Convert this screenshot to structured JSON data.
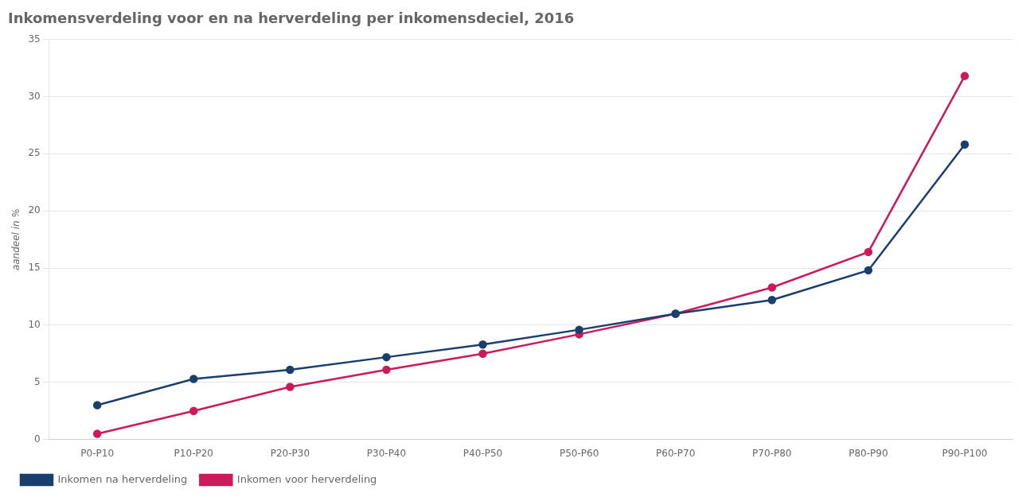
{
  "chart_data": {
    "type": "line",
    "title": "Inkomensverdeling voor en na herverdeling per inkomensdeciel, 2016",
    "ylabel": "aandeel in %",
    "categories": [
      "P0-P10",
      "P10-P20",
      "P20-P30",
      "P30-P40",
      "P40-P50",
      "P50-P60",
      "P60-P70",
      "P70-P80",
      "P80-P90",
      "P90-P100"
    ],
    "series": [
      {
        "name": "Inkomen na herverdeling",
        "color": "#1a3f6f",
        "values": [
          3.0,
          5.3,
          6.1,
          7.2,
          8.3,
          9.6,
          11.0,
          12.2,
          14.8,
          25.8
        ]
      },
      {
        "name": "Inkomen voor herverdeling",
        "color": "#cc1a5a",
        "values": [
          0.5,
          2.5,
          4.6,
          6.1,
          7.5,
          9.2,
          11.0,
          13.3,
          16.4,
          31.8
        ]
      }
    ],
    "ylim": [
      0,
      35
    ],
    "yticks": [
      0,
      5,
      10,
      15,
      20,
      25,
      30,
      35
    ],
    "grid": true,
    "legend": "bottom",
    "marker": "circle"
  }
}
